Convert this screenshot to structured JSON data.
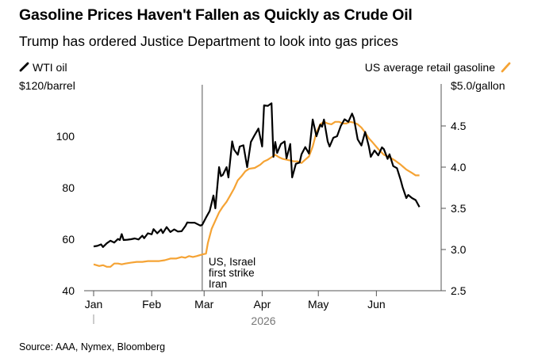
{
  "title": "Gasoline Prices Haven't Fallen as Quickly as Crude Oil",
  "subtitle": "Trump has ordered Justice Department to look into gas prices",
  "source": "Source: AAA, Nymex, Bloomberg",
  "chart_data": {
    "type": "line",
    "x_labels": [
      "Jan",
      "Feb",
      "Mar",
      "Apr",
      "May",
      "Jun"
    ],
    "year_label": "2026",
    "left_axis": {
      "unit_label": "$120/barrel",
      "ticks": [
        40,
        60,
        80,
        100
      ],
      "range": [
        40,
        120
      ]
    },
    "right_axis": {
      "unit_label": "$5.0/gallon",
      "ticks": [
        "2.5",
        "3.0",
        "3.5",
        "4.0",
        "4.5"
      ],
      "range": [
        2.5,
        5.0
      ]
    },
    "annotation": {
      "lines": [
        "US, Israel",
        "first strike",
        "Iran"
      ],
      "date": "2026-02-28"
    },
    "colors": {
      "oil": "#000000",
      "gasoline": "#f5a334",
      "axis": "#555555"
    },
    "series": [
      {
        "name": "WTI oil",
        "axis": "left",
        "points": [
          [
            "2026-01-01",
            57.2
          ],
          [
            "2026-01-03",
            57.4
          ],
          [
            "2026-01-05",
            58.0
          ],
          [
            "2026-01-06",
            57.0
          ],
          [
            "2026-01-08",
            58.4
          ],
          [
            "2026-01-10",
            59.4
          ],
          [
            "2026-01-12",
            58.7
          ],
          [
            "2026-01-14",
            60.1
          ],
          [
            "2026-01-15",
            59.7
          ],
          [
            "2026-01-16",
            62.0
          ],
          [
            "2026-01-17",
            59.7
          ],
          [
            "2026-01-19",
            59.8
          ],
          [
            "2026-01-21",
            60.0
          ],
          [
            "2026-01-23",
            60.3
          ],
          [
            "2026-01-25",
            59.9
          ],
          [
            "2026-01-27",
            61.4
          ],
          [
            "2026-01-28",
            60.4
          ],
          [
            "2026-01-30",
            62.3
          ],
          [
            "2026-02-01",
            61.9
          ],
          [
            "2026-02-02",
            63.9
          ],
          [
            "2026-02-04",
            62.3
          ],
          [
            "2026-02-06",
            63.8
          ],
          [
            "2026-02-07",
            62.4
          ],
          [
            "2026-02-09",
            64.7
          ],
          [
            "2026-02-11",
            62.8
          ],
          [
            "2026-02-13",
            63.8
          ],
          [
            "2026-02-15",
            63.0
          ],
          [
            "2026-02-17",
            63.1
          ],
          [
            "2026-02-19",
            65.1
          ],
          [
            "2026-02-20",
            66.5
          ],
          [
            "2026-02-22",
            66.4
          ],
          [
            "2026-02-24",
            66.4
          ],
          [
            "2026-02-27",
            65.3
          ],
          [
            "2026-02-28",
            65.6
          ],
          [
            "2026-03-02",
            68.4
          ],
          [
            "2026-03-04",
            71.0
          ],
          [
            "2026-03-05",
            74.0
          ],
          [
            "2026-03-06",
            77.0
          ],
          [
            "2026-03-07",
            72.0
          ],
          [
            "2026-03-09",
            88.0
          ],
          [
            "2026-03-10",
            84.5
          ],
          [
            "2026-03-11",
            85.0
          ],
          [
            "2026-03-13",
            88.0
          ],
          [
            "2026-03-14",
            84.0
          ],
          [
            "2026-03-16",
            98.0
          ],
          [
            "2026-03-17",
            94.8
          ],
          [
            "2026-03-19",
            92.8
          ],
          [
            "2026-03-20",
            96.0
          ],
          [
            "2026-03-22",
            96.5
          ],
          [
            "2026-03-24",
            88.0
          ],
          [
            "2026-03-26",
            97.8
          ],
          [
            "2026-03-28",
            100.5
          ],
          [
            "2026-03-30",
            103.0
          ],
          [
            "2026-04-01",
            96.0
          ],
          [
            "2026-04-02",
            112.0
          ],
          [
            "2026-04-04",
            111.8
          ],
          [
            "2026-04-06",
            112.8
          ],
          [
            "2026-04-07",
            92.0
          ],
          [
            "2026-04-08",
            97.8
          ],
          [
            "2026-04-09",
            93.5
          ],
          [
            "2026-04-11",
            97.0
          ],
          [
            "2026-04-13",
            98.0
          ],
          [
            "2026-04-14",
            91.4
          ],
          [
            "2026-04-16",
            97.0
          ],
          [
            "2026-04-17",
            84.0
          ],
          [
            "2026-04-19",
            89.3
          ],
          [
            "2026-04-21",
            89.8
          ],
          [
            "2026-04-22",
            93.0
          ],
          [
            "2026-04-24",
            95.8
          ],
          [
            "2026-04-26",
            93.3
          ],
          [
            "2026-04-28",
            106.5
          ],
          [
            "2026-04-30",
            100.0
          ],
          [
            "2026-05-02",
            104.5
          ],
          [
            "2026-05-03",
            103.7
          ],
          [
            "2026-05-04",
            106.5
          ],
          [
            "2026-05-06",
            98.0
          ],
          [
            "2026-05-07",
            96.0
          ],
          [
            "2026-05-09",
            99.4
          ],
          [
            "2026-05-11",
            100.0
          ],
          [
            "2026-05-13",
            104.0
          ],
          [
            "2026-05-15",
            106.6
          ],
          [
            "2026-05-17",
            105.6
          ],
          [
            "2026-05-19",
            108.8
          ],
          [
            "2026-05-20",
            107.0
          ],
          [
            "2026-05-22",
            98.8
          ],
          [
            "2026-05-24",
            96.4
          ],
          [
            "2026-05-26",
            101.7
          ],
          [
            "2026-05-28",
            96.0
          ],
          [
            "2026-05-29",
            92.0
          ],
          [
            "2026-05-31",
            94.5
          ],
          [
            "2026-06-02",
            92.6
          ],
          [
            "2026-06-04",
            95.7
          ],
          [
            "2026-06-05",
            95.0
          ],
          [
            "2026-06-07",
            91.2
          ],
          [
            "2026-06-08",
            93.0
          ],
          [
            "2026-06-10",
            88.4
          ],
          [
            "2026-06-12",
            87.6
          ],
          [
            "2026-06-14",
            83.0
          ],
          [
            "2026-06-15",
            80.2
          ],
          [
            "2026-06-17",
            76.0
          ],
          [
            "2026-06-18",
            77.2
          ],
          [
            "2026-06-20",
            76.0
          ],
          [
            "2026-06-22",
            75.2
          ],
          [
            "2026-06-24",
            72.5
          ]
        ]
      },
      {
        "name": "US average retail gasoline",
        "axis": "right",
        "points": [
          [
            "2026-01-01",
            2.82
          ],
          [
            "2026-01-04",
            2.8
          ],
          [
            "2026-01-06",
            2.81
          ],
          [
            "2026-01-08",
            2.79
          ],
          [
            "2026-01-10",
            2.79
          ],
          [
            "2026-01-12",
            2.83
          ],
          [
            "2026-01-14",
            2.83
          ],
          [
            "2026-01-16",
            2.82
          ],
          [
            "2026-01-18",
            2.83
          ],
          [
            "2026-01-21",
            2.84
          ],
          [
            "2026-01-24",
            2.85
          ],
          [
            "2026-01-27",
            2.85
          ],
          [
            "2026-01-30",
            2.86
          ],
          [
            "2026-02-02",
            2.86
          ],
          [
            "2026-02-05",
            2.86
          ],
          [
            "2026-02-08",
            2.87
          ],
          [
            "2026-02-11",
            2.89
          ],
          [
            "2026-02-14",
            2.89
          ],
          [
            "2026-02-17",
            2.91
          ],
          [
            "2026-02-19",
            2.9
          ],
          [
            "2026-02-21",
            2.92
          ],
          [
            "2026-02-23",
            2.91
          ],
          [
            "2026-02-25",
            2.92
          ],
          [
            "2026-02-28",
            2.94
          ],
          [
            "2026-03-02",
            2.95
          ],
          [
            "2026-03-03",
            3.08
          ],
          [
            "2026-03-05",
            3.25
          ],
          [
            "2026-03-07",
            3.35
          ],
          [
            "2026-03-09",
            3.45
          ],
          [
            "2026-03-11",
            3.52
          ],
          [
            "2026-03-13",
            3.58
          ],
          [
            "2026-03-15",
            3.66
          ],
          [
            "2026-03-17",
            3.74
          ],
          [
            "2026-03-19",
            3.84
          ],
          [
            "2026-03-21",
            3.89
          ],
          [
            "2026-03-23",
            3.95
          ],
          [
            "2026-03-25",
            3.98
          ],
          [
            "2026-03-28",
            3.99
          ],
          [
            "2026-03-31",
            4.03
          ],
          [
            "2026-04-02",
            4.07
          ],
          [
            "2026-04-04",
            4.09
          ],
          [
            "2026-04-06",
            4.12
          ],
          [
            "2026-04-08",
            4.15
          ],
          [
            "2026-04-10",
            4.12
          ],
          [
            "2026-04-12",
            4.1
          ],
          [
            "2026-04-14",
            4.09
          ],
          [
            "2026-04-16",
            4.08
          ],
          [
            "2026-04-18",
            4.07
          ],
          [
            "2026-04-20",
            4.07
          ],
          [
            "2026-04-22",
            4.05
          ],
          [
            "2026-04-24",
            4.09
          ],
          [
            "2026-04-26",
            4.13
          ],
          [
            "2026-04-28",
            4.25
          ],
          [
            "2026-04-30",
            4.42
          ],
          [
            "2026-05-02",
            4.52
          ],
          [
            "2026-05-04",
            4.55
          ],
          [
            "2026-05-06",
            4.53
          ],
          [
            "2026-05-08",
            4.52
          ],
          [
            "2026-05-10",
            4.55
          ],
          [
            "2026-05-12",
            4.55
          ],
          [
            "2026-05-14",
            4.53
          ],
          [
            "2026-05-16",
            4.53
          ],
          [
            "2026-05-18",
            4.55
          ],
          [
            "2026-05-20",
            4.54
          ],
          [
            "2026-05-22",
            4.52
          ],
          [
            "2026-05-24",
            4.48
          ],
          [
            "2026-05-26",
            4.42
          ],
          [
            "2026-05-28",
            4.35
          ],
          [
            "2026-05-30",
            4.3
          ],
          [
            "2026-06-02",
            4.22
          ],
          [
            "2026-06-05",
            4.15
          ],
          [
            "2026-06-08",
            4.12
          ],
          [
            "2026-06-11",
            4.08
          ],
          [
            "2026-06-14",
            4.03
          ],
          [
            "2026-06-17",
            3.97
          ],
          [
            "2026-06-20",
            3.93
          ],
          [
            "2026-06-22",
            3.9
          ],
          [
            "2026-06-24",
            3.9
          ]
        ]
      }
    ]
  }
}
